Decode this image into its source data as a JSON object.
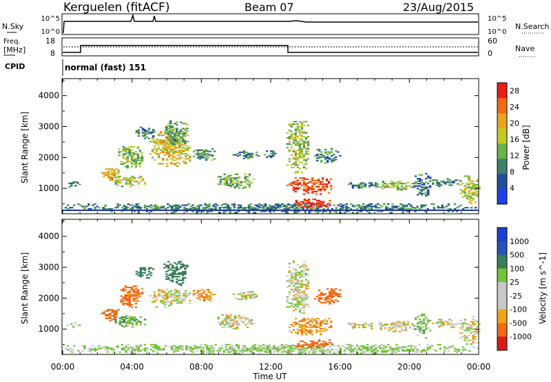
{
  "header": {
    "station": "Kerguelen (fitACF)",
    "beam": "Beam 07",
    "date": "23/Aug/2015"
  },
  "summary_panels": {
    "nsky_label": "N.Sky",
    "nsky_ticks": [
      "10^5",
      "10^0"
    ],
    "nsearch_label": "N.Search",
    "nsearch_ticks": [
      "10^5",
      "10^0"
    ],
    "freq_label": "Freq.",
    "freq_unit": "[MHz]",
    "freq_ticks": [
      "18",
      "8"
    ],
    "nave_label": "Nave",
    "nave_ticks": [
      "60",
      "0"
    ],
    "cpid_label": "CPID",
    "cpid_value": "normal (fast) 151"
  },
  "colors": {
    "power": [
      "#1e40e6",
      "#1f4ea0",
      "#3e7f6b",
      "#6ab24a",
      "#c2c92a",
      "#e7a51c",
      "#ef6a14",
      "#e8201a"
    ],
    "velocity": [
      "#d81d16",
      "#ef6a14",
      "#eea518",
      "#c8c8c8",
      "#c8c8c8",
      "#74c33b",
      "#3a7d5b",
      "#2753b3",
      "#1d3fcc"
    ]
  },
  "chart_data": [
    {
      "type": "heatmap",
      "title": "Power",
      "xlabel": "Time UT",
      "ylabel": "Slant Range [km]",
      "colorbar_label": "Power [dB]",
      "colorbar_ticks": [
        "28",
        "24",
        "20",
        "16",
        "12",
        "8",
        "4"
      ],
      "clim": [
        0,
        30
      ],
      "xlim": [
        0,
        24
      ],
      "ylim": [
        180,
        4550
      ],
      "x_ticks": [
        "00:00",
        "04:00",
        "08:00",
        "12:00",
        "16:00",
        "20:00",
        "00:00"
      ],
      "y_ticks": [
        "1000",
        "2000",
        "3000",
        "4000"
      ],
      "regions": [
        {
          "t0": 0.0,
          "t1": 24.0,
          "r0": 200,
          "r1": 520,
          "value": 9
        },
        {
          "t0": 0.2,
          "t1": 1.0,
          "r0": 1030,
          "r1": 1230,
          "value": 10
        },
        {
          "t0": 2.2,
          "t1": 3.2,
          "r0": 1250,
          "r1": 1650,
          "value": 20
        },
        {
          "t0": 3.0,
          "t1": 4.8,
          "r0": 1050,
          "r1": 1450,
          "value": 16
        },
        {
          "t0": 3.2,
          "t1": 4.6,
          "r0": 1650,
          "r1": 2400,
          "value": 14
        },
        {
          "t0": 4.2,
          "t1": 5.2,
          "r0": 2600,
          "r1": 3000,
          "value": 9
        },
        {
          "t0": 5.0,
          "t1": 7.4,
          "r0": 1700,
          "r1": 2900,
          "value": 18
        },
        {
          "t0": 5.8,
          "t1": 7.2,
          "r0": 2400,
          "r1": 3200,
          "value": 12
        },
        {
          "t0": 7.5,
          "t1": 8.8,
          "r0": 1900,
          "r1": 2300,
          "value": 11
        },
        {
          "t0": 8.8,
          "t1": 11.0,
          "r0": 1000,
          "r1": 1450,
          "value": 13
        },
        {
          "t0": 9.8,
          "t1": 11.3,
          "r0": 1950,
          "r1": 2200,
          "value": 9
        },
        {
          "t0": 11.6,
          "t1": 12.3,
          "r0": 1950,
          "r1": 2250,
          "value": 9
        },
        {
          "t0": 12.9,
          "t1": 15.5,
          "r0": 800,
          "r1": 1350,
          "value": 26
        },
        {
          "t0": 13.3,
          "t1": 15.5,
          "r0": 350,
          "r1": 650,
          "value": 27
        },
        {
          "t0": 12.9,
          "t1": 14.2,
          "r0": 1500,
          "r1": 3200,
          "value": 15
        },
        {
          "t0": 14.5,
          "t1": 16.0,
          "r0": 1800,
          "r1": 2300,
          "value": 10
        },
        {
          "t0": 16.2,
          "t1": 18.3,
          "r0": 1000,
          "r1": 1200,
          "value": 9
        },
        {
          "t0": 18.3,
          "t1": 20.3,
          "r0": 900,
          "r1": 1250,
          "value": 14
        },
        {
          "t0": 20.3,
          "t1": 21.2,
          "r0": 700,
          "r1": 1500,
          "value": 8
        },
        {
          "t0": 21.3,
          "t1": 22.8,
          "r0": 1050,
          "r1": 1300,
          "value": 9
        },
        {
          "t0": 22.9,
          "t1": 24.0,
          "r0": 500,
          "r1": 1400,
          "value": 16
        }
      ]
    },
    {
      "type": "heatmap",
      "title": "Velocity",
      "xlabel": "Time UT",
      "ylabel": "Slant Range [km]",
      "colorbar_label": "Velocity [m s^-1]",
      "colorbar_ticks": [
        "1000",
        "500",
        "100",
        "25",
        "-25",
        "-100",
        "-500",
        "-1000"
      ],
      "x_ticks": [
        "00:00",
        "04:00",
        "08:00",
        "12:00",
        "16:00",
        "20:00",
        "00:00"
      ],
      "y_ticks": [
        "1000",
        "2000",
        "3000",
        "4000"
      ],
      "xlim": [
        0,
        24
      ],
      "ylim": [
        180,
        4550
      ],
      "regions": [
        {
          "t0": 0.0,
          "t1": 24.0,
          "r0": 200,
          "r1": 500,
          "value": 40
        },
        {
          "t0": 0.2,
          "t1": 1.0,
          "r0": 1030,
          "r1": 1230,
          "value": 0
        },
        {
          "t0": 2.2,
          "t1": 3.2,
          "r0": 1250,
          "r1": 1650,
          "value": -200
        },
        {
          "t0": 3.0,
          "t1": 4.8,
          "r0": 1050,
          "r1": 1450,
          "value": 80
        },
        {
          "t0": 3.2,
          "t1": 4.6,
          "r0": 1650,
          "r1": 2400,
          "value": -150
        },
        {
          "t0": 4.2,
          "t1": 5.2,
          "r0": 2600,
          "r1": 3000,
          "value": 200
        },
        {
          "t0": 5.0,
          "t1": 7.4,
          "r0": 1700,
          "r1": 2300,
          "value": 0
        },
        {
          "t0": 5.8,
          "t1": 7.2,
          "r0": 2400,
          "r1": 3200,
          "value": 200
        },
        {
          "t0": 7.5,
          "t1": 8.8,
          "r0": 1900,
          "r1": 2300,
          "value": -80
        },
        {
          "t0": 8.8,
          "t1": 11.0,
          "r0": 1000,
          "r1": 1450,
          "value": 10
        },
        {
          "t0": 9.8,
          "t1": 11.3,
          "r0": 1950,
          "r1": 2200,
          "value": 0
        },
        {
          "t0": 12.9,
          "t1": 15.5,
          "r0": 800,
          "r1": 1350,
          "value": -80
        },
        {
          "t0": 13.3,
          "t1": 15.5,
          "r0": 350,
          "r1": 650,
          "value": -300
        },
        {
          "t0": 12.9,
          "t1": 14.2,
          "r0": 1500,
          "r1": 3200,
          "value": 0
        },
        {
          "t0": 14.5,
          "t1": 16.0,
          "r0": 1800,
          "r1": 2300,
          "value": -150
        },
        {
          "t0": 16.2,
          "t1": 18.3,
          "r0": 1000,
          "r1": 1200,
          "value": 0
        },
        {
          "t0": 18.3,
          "t1": 20.3,
          "r0": 900,
          "r1": 1250,
          "value": 0
        },
        {
          "t0": 20.3,
          "t1": 21.2,
          "r0": 700,
          "r1": 1500,
          "value": 60
        },
        {
          "t0": 21.3,
          "t1": 22.8,
          "r0": 1050,
          "r1": 1300,
          "value": 0
        },
        {
          "t0": 22.9,
          "t1": 24.0,
          "r0": 500,
          "r1": 1400,
          "value": 0
        }
      ]
    }
  ]
}
